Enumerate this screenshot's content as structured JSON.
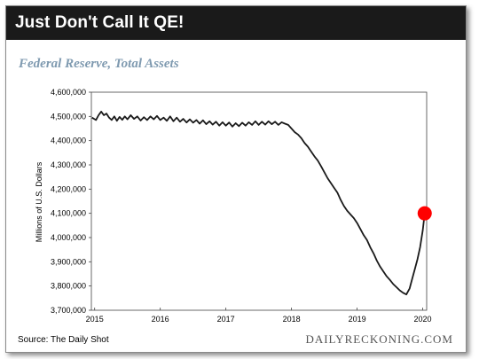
{
  "header": {
    "title": "Just Don't Call It QE!"
  },
  "footer": {
    "source": "Source: The Daily Shot",
    "brand": "DAILYRECKONING.COM"
  },
  "colors": {
    "header_bg": "#1a1a1a",
    "subtitle": "#7f9ab0",
    "line": "#1a1a1a",
    "marker": "#ff0000"
  },
  "chart_data": {
    "type": "line",
    "title": "Federal Reserve, Total Assets",
    "xlabel": "",
    "ylabel": "Millions of U.S. Dollars",
    "xlim": [
      2014.95,
      2020.06
    ],
    "ylim": [
      3700000,
      4600000
    ],
    "y_ticks": [
      3700000,
      3800000,
      3900000,
      4000000,
      4100000,
      4200000,
      4300000,
      4400000,
      4500000,
      4600000
    ],
    "y_tick_labels": [
      "3,700,000",
      "3,800,000",
      "3,900,000",
      "4,000,000",
      "4,100,000",
      "4,200,000",
      "4,300,000",
      "4,400,000",
      "4,500,000",
      "4,600,000"
    ],
    "x_ticks": [
      2015,
      2016,
      2017,
      2018,
      2019,
      2020
    ],
    "x_tick_labels": [
      "2015",
      "2016",
      "2017",
      "2018",
      "2019",
      "2020"
    ],
    "grid": false,
    "series": [
      {
        "points": [
          [
            2014.96,
            4495000
          ],
          [
            2015.02,
            4485000
          ],
          [
            2015.06,
            4505000
          ],
          [
            2015.1,
            4520000
          ],
          [
            2015.14,
            4505000
          ],
          [
            2015.18,
            4512000
          ],
          [
            2015.22,
            4495000
          ],
          [
            2015.26,
            4485000
          ],
          [
            2015.3,
            4500000
          ],
          [
            2015.34,
            4482000
          ],
          [
            2015.38,
            4498000
          ],
          [
            2015.42,
            4486000
          ],
          [
            2015.46,
            4500000
          ],
          [
            2015.5,
            4488000
          ],
          [
            2015.55,
            4505000
          ],
          [
            2015.6,
            4490000
          ],
          [
            2015.65,
            4500000
          ],
          [
            2015.7,
            4483000
          ],
          [
            2015.75,
            4497000
          ],
          [
            2015.8,
            4485000
          ],
          [
            2015.85,
            4500000
          ],
          [
            2015.9,
            4488000
          ],
          [
            2015.95,
            4502000
          ],
          [
            2016.0,
            4485000
          ],
          [
            2016.05,
            4495000
          ],
          [
            2016.1,
            4482000
          ],
          [
            2016.15,
            4500000
          ],
          [
            2016.2,
            4480000
          ],
          [
            2016.25,
            4495000
          ],
          [
            2016.3,
            4478000
          ],
          [
            2016.35,
            4490000
          ],
          [
            2016.4,
            4475000
          ],
          [
            2016.45,
            4488000
          ],
          [
            2016.5,
            4474000
          ],
          [
            2016.55,
            4485000
          ],
          [
            2016.6,
            4470000
          ],
          [
            2016.65,
            4484000
          ],
          [
            2016.7,
            4468000
          ],
          [
            2016.75,
            4480000
          ],
          [
            2016.8,
            4466000
          ],
          [
            2016.85,
            4478000
          ],
          [
            2016.9,
            4462000
          ],
          [
            2016.95,
            4476000
          ],
          [
            2017.0,
            4462000
          ],
          [
            2017.05,
            4475000
          ],
          [
            2017.1,
            4458000
          ],
          [
            2017.15,
            4472000
          ],
          [
            2017.2,
            4460000
          ],
          [
            2017.25,
            4474000
          ],
          [
            2017.3,
            4462000
          ],
          [
            2017.35,
            4476000
          ],
          [
            2017.4,
            4465000
          ],
          [
            2017.45,
            4480000
          ],
          [
            2017.5,
            4465000
          ],
          [
            2017.55,
            4478000
          ],
          [
            2017.6,
            4466000
          ],
          [
            2017.65,
            4480000
          ],
          [
            2017.7,
            4468000
          ],
          [
            2017.75,
            4478000
          ],
          [
            2017.8,
            4465000
          ],
          [
            2017.85,
            4476000
          ],
          [
            2017.9,
            4470000
          ],
          [
            2017.95,
            4465000
          ],
          [
            2018.0,
            4450000
          ],
          [
            2018.05,
            4435000
          ],
          [
            2018.1,
            4425000
          ],
          [
            2018.15,
            4410000
          ],
          [
            2018.2,
            4390000
          ],
          [
            2018.25,
            4375000
          ],
          [
            2018.3,
            4355000
          ],
          [
            2018.35,
            4335000
          ],
          [
            2018.4,
            4318000
          ],
          [
            2018.45,
            4295000
          ],
          [
            2018.5,
            4270000
          ],
          [
            2018.55,
            4245000
          ],
          [
            2018.6,
            4225000
          ],
          [
            2018.65,
            4205000
          ],
          [
            2018.7,
            4185000
          ],
          [
            2018.75,
            4155000
          ],
          [
            2018.8,
            4130000
          ],
          [
            2018.85,
            4110000
          ],
          [
            2018.9,
            4095000
          ],
          [
            2018.95,
            4080000
          ],
          [
            2019.0,
            4060000
          ],
          [
            2019.05,
            4035000
          ],
          [
            2019.1,
            4010000
          ],
          [
            2019.15,
            3990000
          ],
          [
            2019.2,
            3960000
          ],
          [
            2019.25,
            3935000
          ],
          [
            2019.3,
            3905000
          ],
          [
            2019.35,
            3880000
          ],
          [
            2019.4,
            3860000
          ],
          [
            2019.45,
            3840000
          ],
          [
            2019.5,
            3825000
          ],
          [
            2019.55,
            3808000
          ],
          [
            2019.6,
            3795000
          ],
          [
            2019.65,
            3782000
          ],
          [
            2019.7,
            3772000
          ],
          [
            2019.75,
            3765000
          ],
          [
            2019.8,
            3790000
          ],
          [
            2019.84,
            3830000
          ],
          [
            2019.88,
            3870000
          ],
          [
            2019.92,
            3910000
          ],
          [
            2019.96,
            3960000
          ],
          [
            2020.0,
            4030000
          ],
          [
            2020.03,
            4100000
          ]
        ]
      }
    ],
    "marker": {
      "x": 2020.03,
      "y": 4100000
    }
  }
}
